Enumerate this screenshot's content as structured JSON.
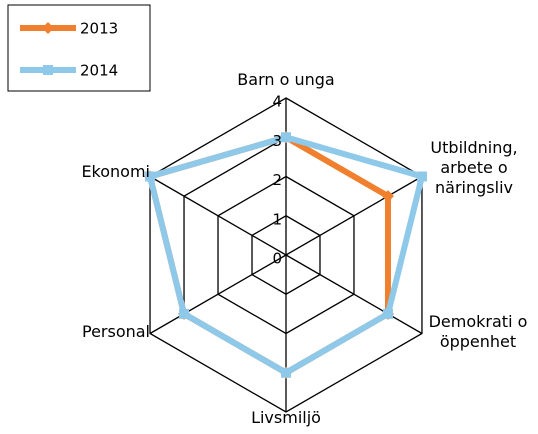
{
  "chart_data": {
    "type": "radar",
    "categories": [
      "Barn o unga",
      "Utbildning, arbete o näringsliv",
      "Demokrati o öppenhet",
      "Livsmiljö",
      "Personal",
      "Ekonomi"
    ],
    "series": [
      {
        "name": "2013",
        "color": "#f07f2e",
        "values": [
          3,
          3,
          3,
          3,
          3,
          4
        ]
      },
      {
        "name": "2014",
        "color": "#8ec9ea",
        "values": [
          3,
          4,
          3,
          3,
          3,
          4
        ]
      }
    ],
    "ylim": [
      0,
      4
    ],
    "yticks": [
      0,
      1,
      2,
      3,
      4
    ],
    "grid": true,
    "legend": "top-left"
  }
}
